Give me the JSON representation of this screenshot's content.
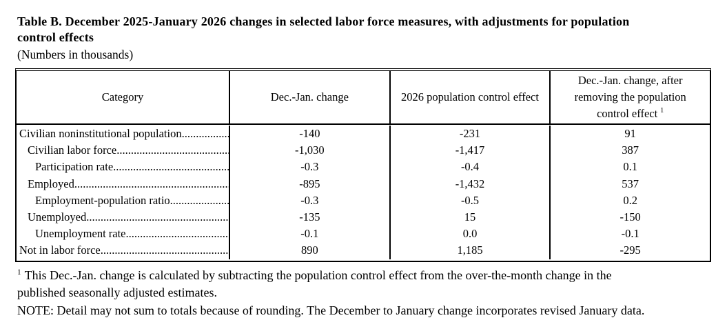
{
  "page": {
    "title_lines": [
      "Table B. December 2025-January 2026 changes in selected labor force measures, with adjustments for population",
      "control effects"
    ],
    "subtitle": "(Numbers in thousands)"
  },
  "table": {
    "leader_dots": "..........................................................................................................",
    "headers": {
      "category": "Category",
      "col1": "Dec.-Jan. change",
      "col2": "2026 population control effect",
      "col3_text": "Dec.-Jan. change, after removing the population control effect",
      "col3_footnote_marker": "1"
    },
    "rows": [
      {
        "label": "Civilian noninstitutional population",
        "indent": 0,
        "values": [
          "-140",
          "-231",
          "91"
        ]
      },
      {
        "label": "Civilian labor force",
        "indent": 1,
        "values": [
          "-1,030",
          "-1,417",
          "387"
        ]
      },
      {
        "label": "Participation rate",
        "indent": 2,
        "values": [
          "-0.3",
          "-0.4",
          "0.1"
        ]
      },
      {
        "label": "Employed",
        "indent": 1,
        "values": [
          "-895",
          "-1,432",
          "537"
        ]
      },
      {
        "label": "Employment-population ratio",
        "indent": 2,
        "values": [
          "-0.3",
          "-0.5",
          "0.2"
        ]
      },
      {
        "label": "Unemployed",
        "indent": 1,
        "values": [
          "-135",
          "15",
          "-150"
        ]
      },
      {
        "label": "Unemployment rate",
        "indent": 2,
        "values": [
          "-0.1",
          "0.0",
          "-0.1"
        ]
      },
      {
        "label": "Not in labor force",
        "indent": 0,
        "values": [
          "890",
          "1,185",
          "-295"
        ]
      }
    ]
  },
  "footnotes": {
    "footnote1_marker": "1",
    "footnote1_lines": [
      "This Dec.-Jan. change is calculated by subtracting the population control effect from the over-the-month change in the",
      "published seasonally adjusted estimates."
    ],
    "note": "NOTE: Detail may not sum to totals because of rounding. The December to January change incorporates revised January data."
  }
}
